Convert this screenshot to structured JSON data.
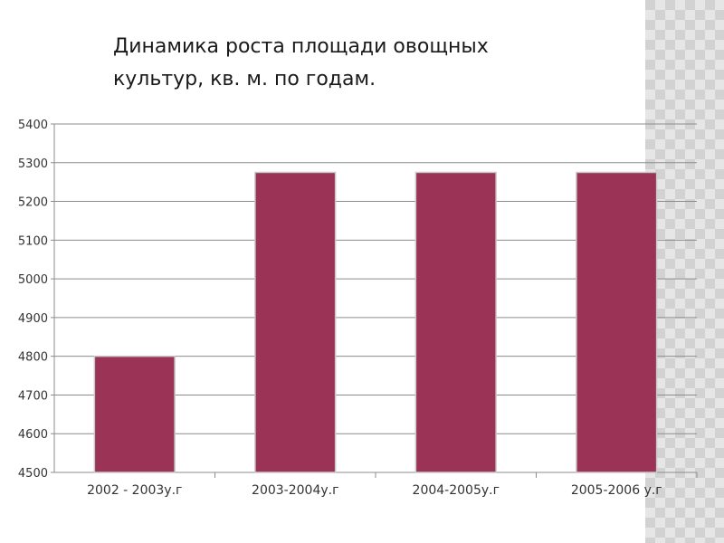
{
  "slide": {
    "title_line1": "Динамика роста площади овощных",
    "title_line2": "культур,  кв. м. по годам."
  },
  "colors": {
    "bar": "#9b3356",
    "bar_edge": "#c9c9c9",
    "grid": "#8c8c8c",
    "text": "#333333"
  },
  "chart_data": {
    "type": "bar",
    "title": "Динамика роста площади овощных культур,  кв. м. по годам.",
    "categories": [
      "2002 - 2003у.г",
      "2003-2004у.г",
      "2004-2005у.г",
      "2005-2006 у.г"
    ],
    "values": [
      4800,
      5275,
      5275,
      5275
    ],
    "ylim": [
      4500,
      5400
    ],
    "yticks": [
      4500,
      4600,
      4700,
      4800,
      4900,
      5000,
      5100,
      5200,
      5300,
      5400
    ],
    "xlabel": "",
    "ylabel": "",
    "grid": true,
    "legend": "none"
  }
}
